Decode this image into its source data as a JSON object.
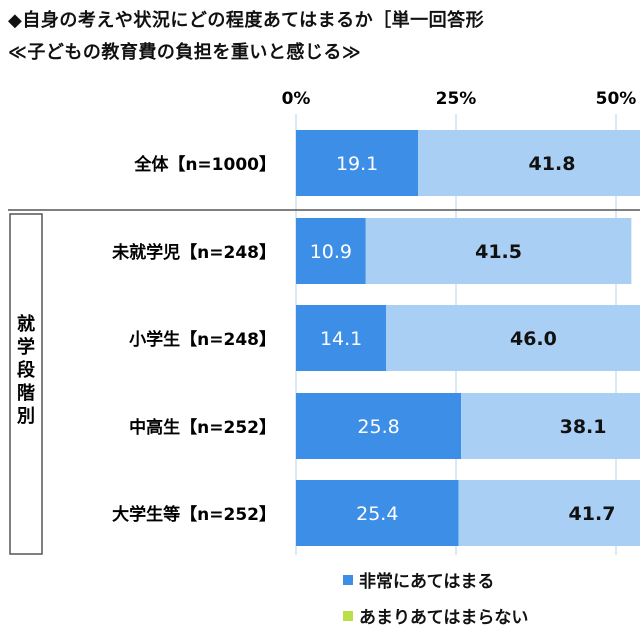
{
  "header": {
    "title": "◆自身の考えや状況にどの程度あてはまるか［単一回答形",
    "subtitle": "≪子どもの教育費の負担を重いと感じる≫"
  },
  "colors": {
    "series1": "#3d8ee6",
    "series2": "#a9cff4",
    "grid": "#b9d2ec",
    "legend2": "#b8e04a"
  },
  "chart_data": {
    "type": "bar",
    "orientation": "horizontal",
    "stacked": true,
    "x_ticks": [
      "0%",
      "25%",
      "50%"
    ],
    "xlim": [
      0,
      100
    ],
    "categories": [
      "全体【n=1000】",
      "未就学児【n=248】",
      "小学生【n=248】",
      "中高生【n=252】",
      "大学生等【n=252】"
    ],
    "group_label": "就学段階別",
    "series": [
      {
        "name": "非常にあてはまる",
        "values": [
          19.1,
          10.9,
          14.1,
          25.8,
          25.4
        ]
      },
      {
        "name": "あまりあてはまらない",
        "values": [
          41.8,
          41.5,
          46.0,
          38.1,
          41.7
        ]
      }
    ]
  }
}
